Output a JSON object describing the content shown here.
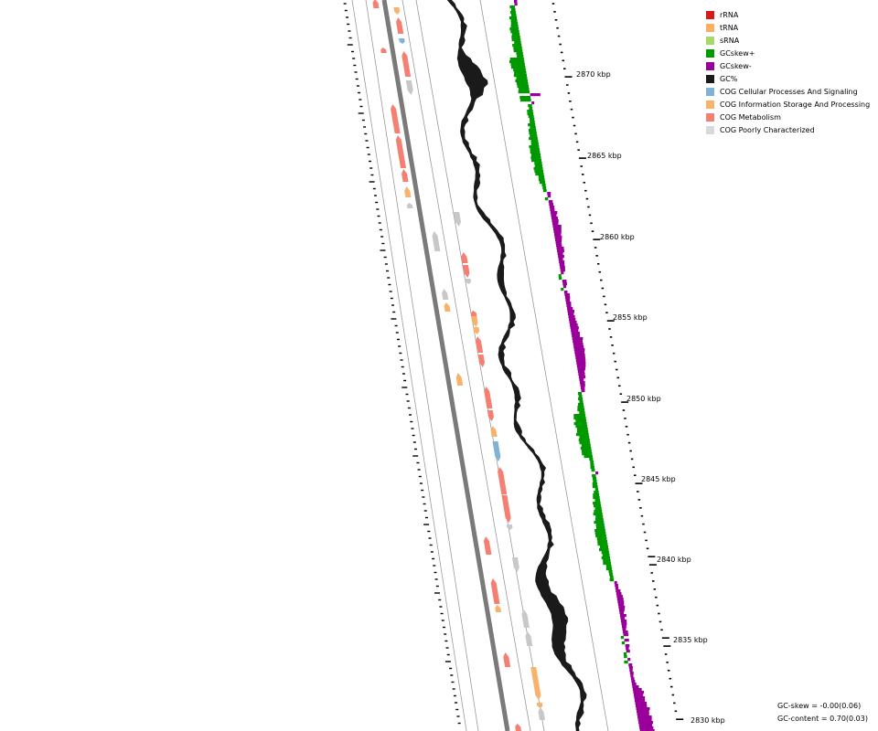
{
  "legend": [
    {
      "label": "rRNA",
      "color": "#d7191c"
    },
    {
      "label": "tRNA",
      "color": "#fdae61"
    },
    {
      "label": "sRNA",
      "color": "#a6d96a"
    },
    {
      "label": "GCskew+",
      "color": "#009900"
    },
    {
      "label": "GCskew-",
      "color": "#990099"
    },
    {
      "label": "GC%",
      "color": "#1a1a1a"
    },
    {
      "label": "COG Cellular Processes And Signaling",
      "color": "#7fb2d5"
    },
    {
      "label": "COG Information Storage And Processing",
      "color": "#f7b36b"
    },
    {
      "label": "COG Metabolism",
      "color": "#f47f72"
    },
    {
      "label": "COG Poorly Characterized",
      "color": "#d9d9d9"
    }
  ],
  "ticks": [
    {
      "label": "2870 kbp"
    },
    {
      "label": "2865 kbp"
    },
    {
      "label": "2860 kbp"
    },
    {
      "label": "2855 kbp"
    },
    {
      "label": "2850 kbp"
    },
    {
      "label": "2845 kbp"
    },
    {
      "label": "2840 kbp"
    },
    {
      "label": "2835 kbp"
    },
    {
      "label": "2830 kbp"
    }
  ],
  "stats": {
    "gc_skew": "GC-skew = -0.00(0.06)",
    "gc_content": "GC-content = 0.70(0.03)"
  }
}
